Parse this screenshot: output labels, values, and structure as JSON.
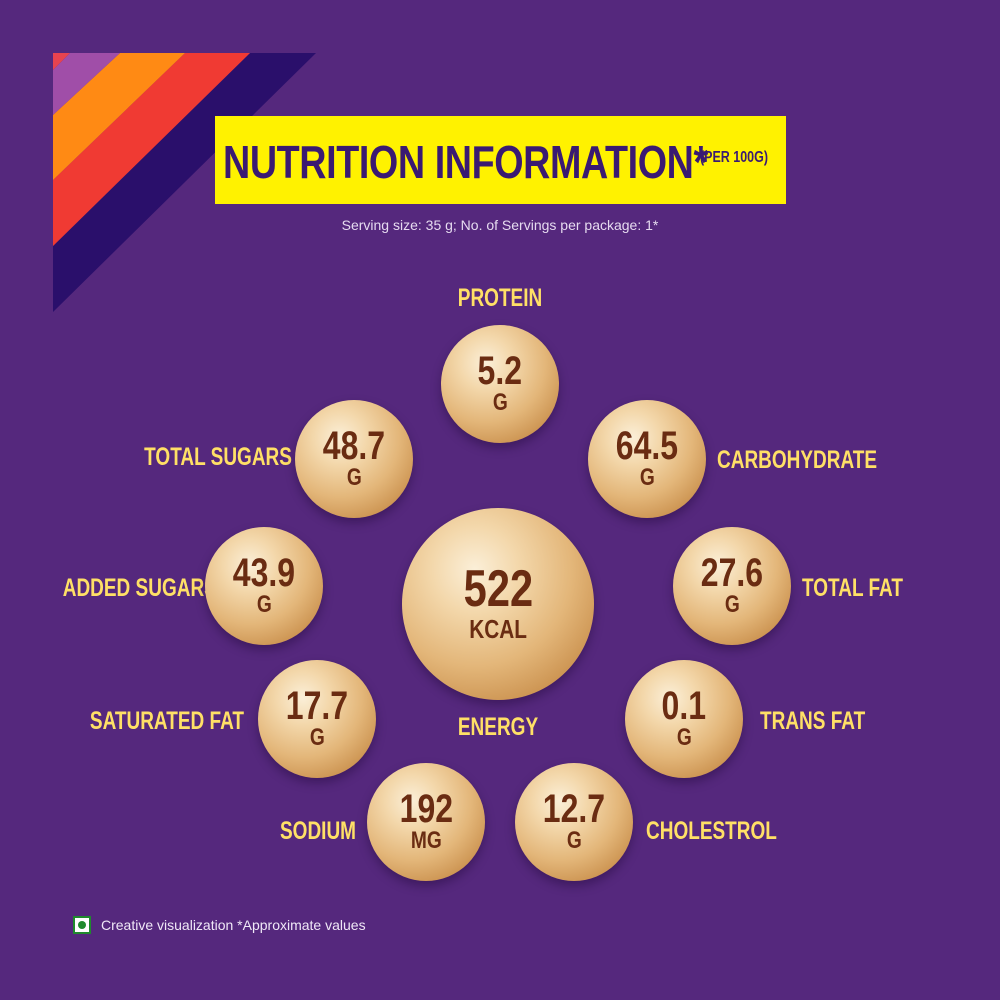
{
  "header": {
    "title": "NUTRITION INFORMATION*",
    "subtitle": "(PER 100G)",
    "serving_text": "Serving size: 35 g; No. of Servings per package: 1*"
  },
  "nutrients": {
    "protein": {
      "label": "PROTEIN",
      "value": "5.2",
      "unit": "G"
    },
    "total_sugars": {
      "label": "TOTAL SUGARS",
      "value": "48.7",
      "unit": "G"
    },
    "carbohydrate": {
      "label": "CARBOHYDRATE",
      "value": "64.5",
      "unit": "G"
    },
    "added_sugars": {
      "label": "ADDED SUGARS",
      "value": "43.9",
      "unit": "G"
    },
    "energy": {
      "label": "ENERGY",
      "value": "522",
      "unit": "KCAL"
    },
    "total_fat": {
      "label": "TOTAL FAT",
      "value": "27.6",
      "unit": "G"
    },
    "saturated_fat": {
      "label": "SATURATED FAT",
      "value": "17.7",
      "unit": "G"
    },
    "trans_fat": {
      "label": "TRANS FAT",
      "value": "0.1",
      "unit": "G"
    },
    "sodium": {
      "label": "SODIUM",
      "value": "192",
      "unit": "MG"
    },
    "cholestrol": {
      "label": "CHOLESTROL",
      "value": "12.7",
      "unit": "G"
    }
  },
  "footer": {
    "text": "Creative visualization *Approximate values",
    "veg_icon": "veg-symbol-icon"
  },
  "colors": {
    "background": "#55287d",
    "banner": "#fff200",
    "label_yellow": "#ffe066",
    "value_brown": "#6a2c12"
  }
}
